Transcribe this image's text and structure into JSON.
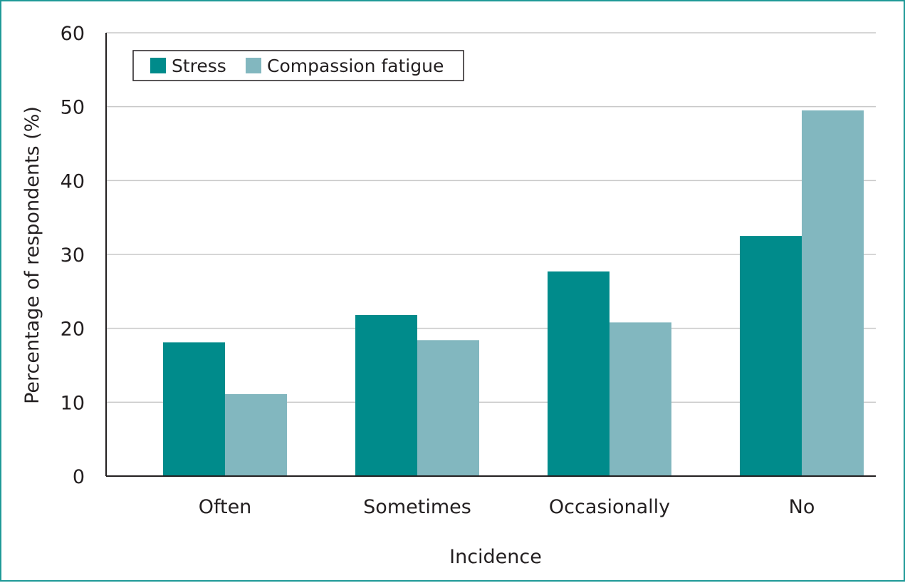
{
  "chart_data": {
    "type": "bar",
    "title": "",
    "xlabel": "Incidence",
    "ylabel": "Percentage of respondents (%)",
    "categories": [
      "Often",
      "Sometimes",
      "Occasionally",
      "No"
    ],
    "series": [
      {
        "name": "Stress",
        "color": "#008b8b",
        "values": [
          18.1,
          21.8,
          27.7,
          32.5
        ]
      },
      {
        "name": "Compassion fatigue",
        "color": "#82b7bf",
        "values": [
          11.1,
          18.4,
          20.8,
          49.5
        ]
      }
    ],
    "ylim": [
      0,
      60
    ],
    "yticks": [
      0,
      10,
      20,
      30,
      40,
      50,
      60
    ],
    "grid": true,
    "legend": "top-left"
  }
}
